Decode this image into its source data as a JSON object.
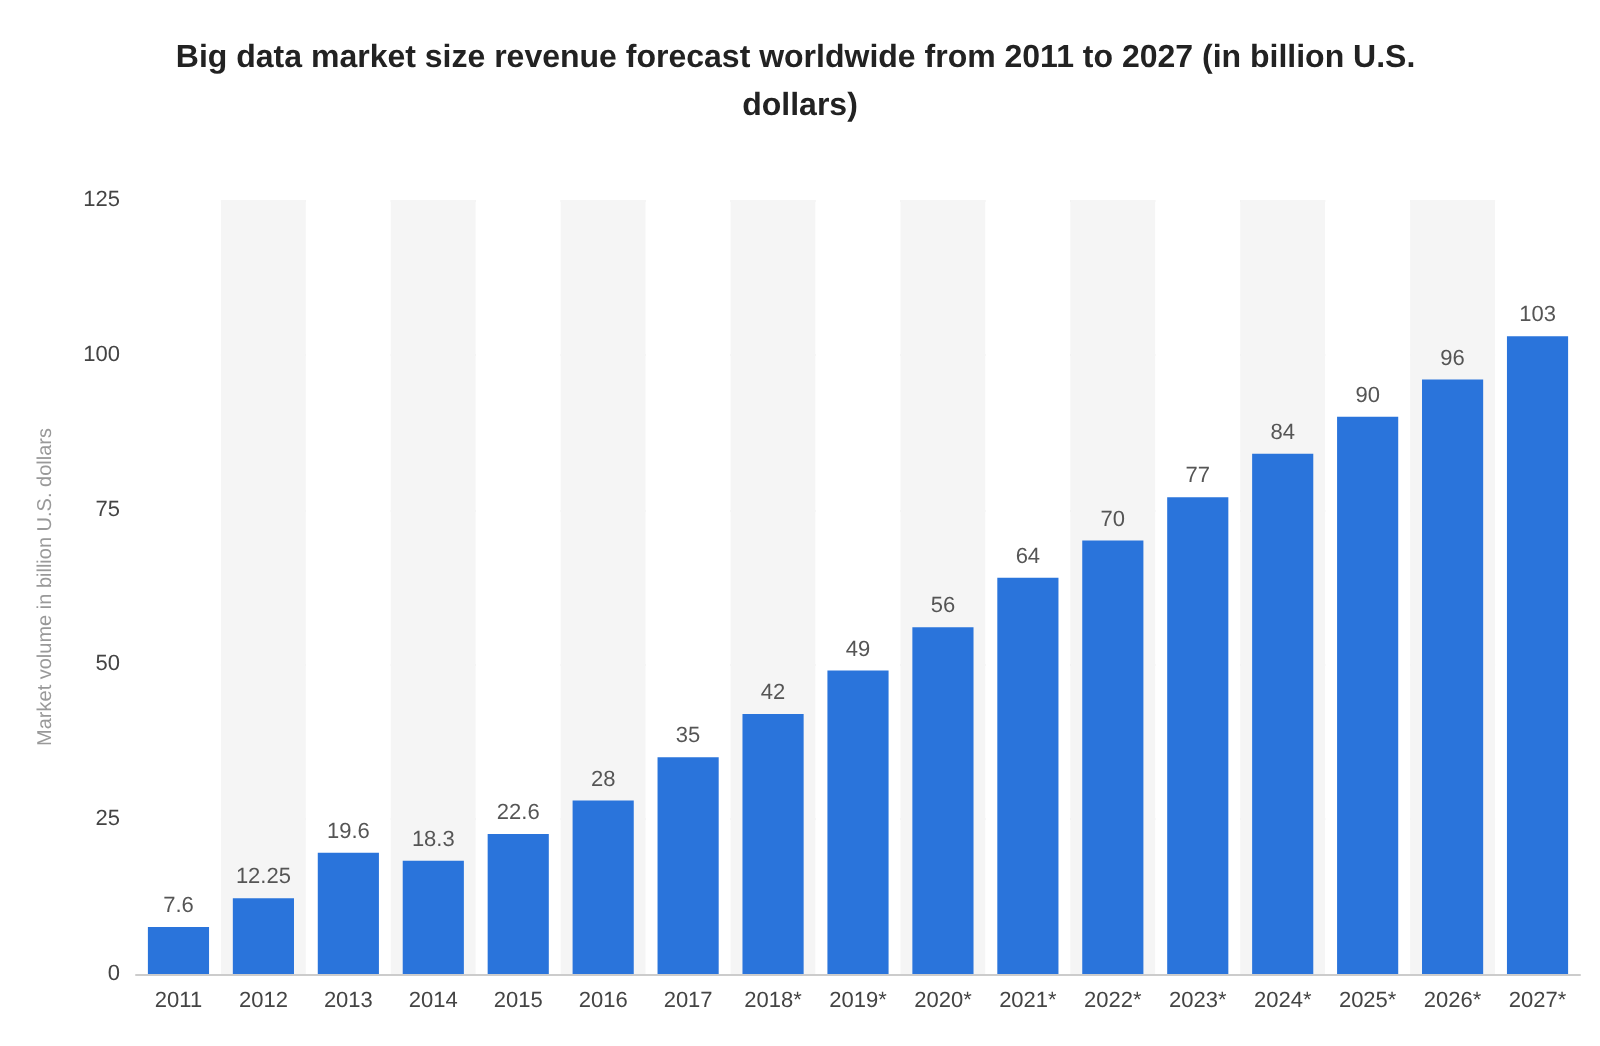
{
  "chart_data": {
    "type": "bar",
    "title": "Big data market size revenue forecast worldwide from 2011 to 2027 (in billion U.S. dollars)",
    "ylabel": "Market volume in billion U.S. dollars",
    "categories": [
      "2011",
      "2012",
      "2013",
      "2014",
      "2015",
      "2016",
      "2017",
      "2018*",
      "2019*",
      "2020*",
      "2021*",
      "2022*",
      "2023*",
      "2024*",
      "2025*",
      "2026*",
      "2027*"
    ],
    "values": [
      7.6,
      12.25,
      19.6,
      18.3,
      22.6,
      28,
      35,
      42,
      49,
      56,
      64,
      70,
      77,
      84,
      90,
      96,
      103
    ],
    "color": "#2a74db",
    "ylim": [
      0,
      125
    ],
    "yticks": [
      0,
      25,
      50,
      75,
      100,
      125
    ],
    "grid": "y",
    "data_labels": true
  }
}
